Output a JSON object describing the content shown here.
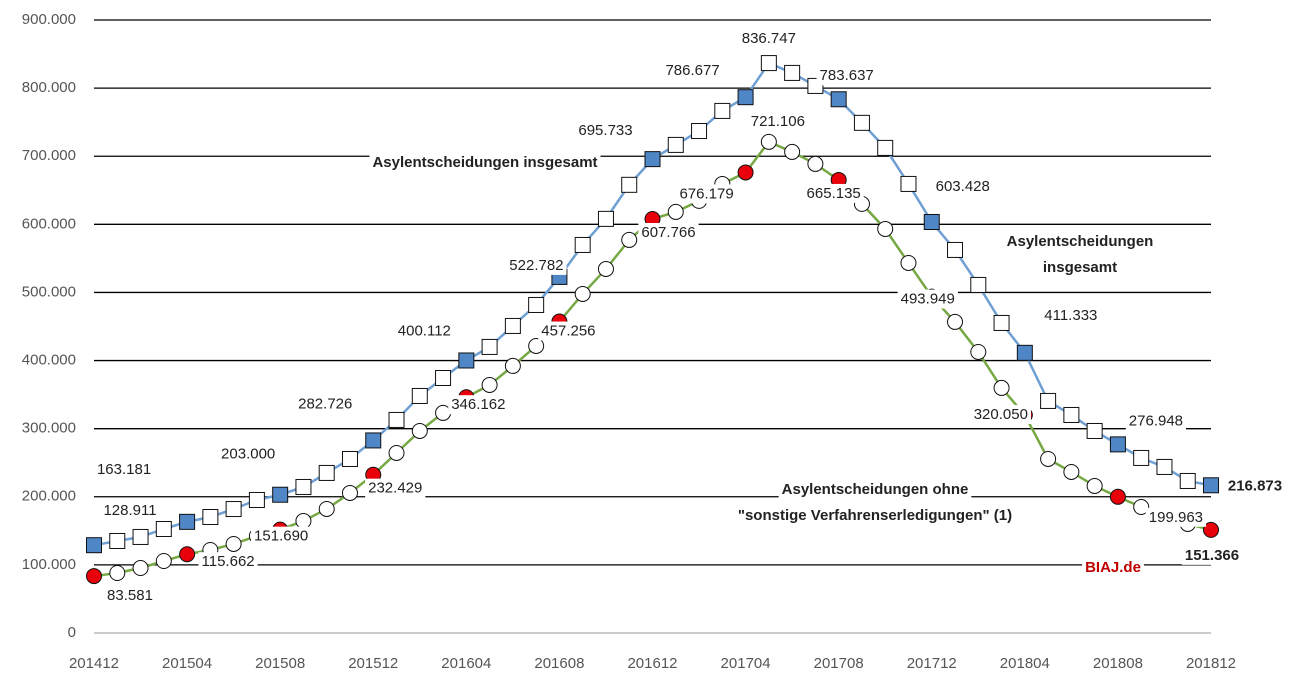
{
  "chart_data": {
    "type": "line",
    "categories": [
      "201412",
      null,
      null,
      null,
      "201504",
      null,
      null,
      null,
      "201508",
      null,
      null,
      null,
      "201512",
      null,
      null,
      null,
      "201604",
      null,
      null,
      null,
      "201608",
      null,
      null,
      null,
      "201612",
      null,
      null,
      null,
      "201704",
      null,
      null,
      null,
      "201708",
      null,
      null,
      null,
      "201712",
      null,
      null,
      null,
      "201804",
      null,
      null,
      null,
      "201808",
      null,
      null,
      null,
      "201812"
    ],
    "ylim": [
      0,
      900000
    ],
    "yticks": [
      0,
      {
        "value": 100000,
        "label": "100.000"
      },
      {
        "value": 200000,
        "label": "200.000"
      },
      {
        "value": 300000,
        "label": "300.000"
      },
      {
        "value": 400000,
        "label": "400.000"
      },
      {
        "value": 500000,
        "label": "500.000"
      },
      {
        "value": 600000,
        "label": "600.000"
      },
      {
        "value": 700000,
        "label": "700.000"
      },
      {
        "value": 800000,
        "label": "800.000"
      },
      {
        "value": 900000,
        "label": "900.000"
      }
    ],
    "grid": true,
    "series": [
      {
        "name": "Asylentscheidungen insgesamt",
        "color": "#6f9fd3",
        "marker": "square",
        "marker_color": "#4f86c6",
        "values": [
          128911,
          135100,
          141000,
          152700,
          163181,
          170300,
          182000,
          195300,
          203000,
          214400,
          235000,
          255500,
          282726,
          312800,
          348000,
          374400,
          400112,
          420000,
          450800,
          481600,
          522782,
          569700,
          608000,
          658000,
          695733,
          716600,
          737000,
          766500,
          786677,
          836747,
          822300,
          803200,
          783637,
          749000,
          712200,
          659300,
          603428,
          562400,
          511000,
          455200,
          411333,
          340700,
          320100,
          296600,
          276948,
          257000,
          243800,
          223200,
          216873
        ],
        "value_labels": [
          "128.911",
          null,
          null,
          null,
          "163.181",
          null,
          null,
          null,
          "203.000",
          null,
          null,
          null,
          "282.726",
          null,
          null,
          null,
          "400.112",
          null,
          null,
          null,
          "522.782",
          null,
          null,
          null,
          "695.733",
          null,
          null,
          null,
          "786.677",
          "836.747",
          null,
          null,
          "783.637",
          null,
          null,
          null,
          "603.428",
          null,
          null,
          null,
          "411.333",
          null,
          null,
          null,
          "276.948",
          null,
          null,
          null,
          "216.873"
        ]
      },
      {
        "color": "#76a844",
        "marker": "circle",
        "marker_color": "#e8000b",
        "values": [
          83581,
          88100,
          95400,
          105700,
          115662,
          121900,
          130700,
          142400,
          151690,
          164500,
          182100,
          205600,
          232429,
          264300,
          296600,
          323100,
          346162,
          364200,
          392100,
          421400,
          457256,
          497800,
          534500,
          577100,
          607766,
          618200,
          634400,
          659300,
          676179,
          721106,
          706300,
          688700,
          665135,
          630000,
          593200,
          543300,
          493949,
          456700,
          412600,
          359800,
          320050,
          255500,
          236400,
          215900,
          199963,
          185000,
          170300,
          160100,
          151366
        ],
        "value_labels": [
          "83.581",
          null,
          null,
          null,
          "115.662",
          null,
          null,
          null,
          "151.690",
          null,
          null,
          null,
          "232.429",
          null,
          null,
          null,
          "346.162",
          null,
          null,
          null,
          "457.256",
          null,
          null,
          null,
          "607.766",
          null,
          null,
          null,
          "676.179",
          "721.106",
          null,
          null,
          "665.135",
          null,
          null,
          null,
          "493.949",
          null,
          null,
          null,
          "320.050",
          null,
          null,
          null,
          "199.963",
          null,
          null,
          null,
          "151.366"
        ]
      }
    ],
    "annotations": [
      [
        "Asylentscheidungen",
        "insgesamt"
      ],
      [
        "Asylentscheidungen ohne",
        "\"sonstige Verfahrenserledigungen\" (1)"
      ],
      [
        "BIAJ.de"
      ]
    ]
  }
}
